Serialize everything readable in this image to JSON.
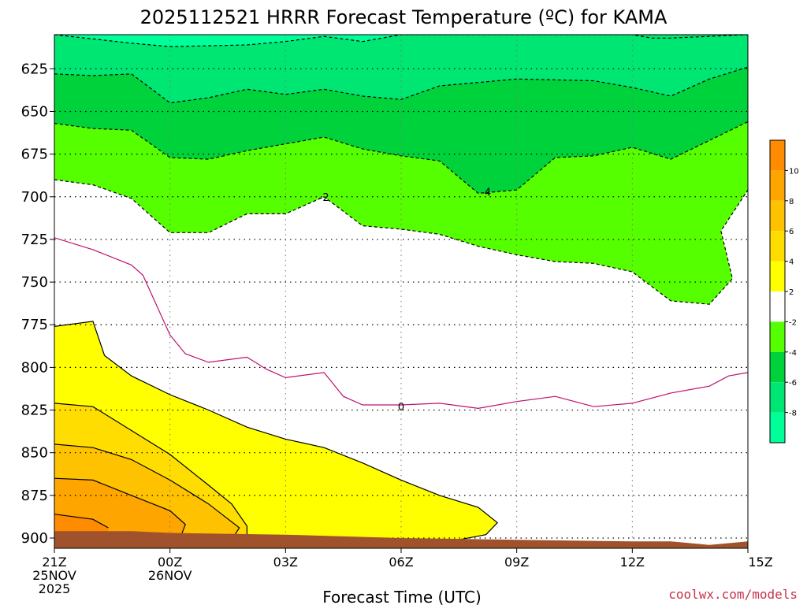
{
  "chart_data": {
    "type": "contour",
    "title": "2025112521 HRRR Forecast Temperature (ºC) for KAMA",
    "xlabel": "Forecast Time (UTC)",
    "ylabel": "",
    "credit": "coolwx.com/models",
    "x_range_hours": [
      0,
      18
    ],
    "y_range_hpa": [
      605,
      906
    ],
    "x_ticks": [
      {
        "hour": 0,
        "lines": [
          "21Z",
          "25NOV",
          "2025"
        ]
      },
      {
        "hour": 3,
        "lines": [
          "00Z",
          "26NOV"
        ]
      },
      {
        "hour": 6,
        "lines": [
          "03Z"
        ]
      },
      {
        "hour": 9,
        "lines": [
          "06Z"
        ]
      },
      {
        "hour": 12,
        "lines": [
          "09Z"
        ]
      },
      {
        "hour": 15,
        "lines": [
          "12Z"
        ]
      },
      {
        "hour": 18,
        "lines": [
          "15Z"
        ]
      }
    ],
    "y_ticks": [
      625,
      650,
      675,
      700,
      725,
      750,
      775,
      800,
      825,
      850,
      875,
      900
    ],
    "contour_labels": [
      {
        "text": "-2",
        "hour": 7.0,
        "hpa": 700
      },
      {
        "text": "-4",
        "hour": 11.2,
        "hpa": 697
      },
      {
        "text": "0",
        "hour": 9.0,
        "hpa": 823
      }
    ],
    "contours": {
      "minus8": [
        [
          0,
          605
        ],
        [
          2,
          610
        ],
        [
          3,
          612
        ],
        [
          5,
          611
        ],
        [
          6,
          609
        ],
        [
          7,
          606
        ],
        [
          8,
          609
        ],
        [
          9,
          605
        ],
        [
          18,
          605
        ],
        [
          16,
          607
        ],
        [
          15.5,
          607
        ],
        [
          15,
          605
        ]
      ],
      "minus6": [
        [
          0,
          628
        ],
        [
          1,
          629
        ],
        [
          2,
          628
        ],
        [
          3,
          645
        ],
        [
          4,
          642
        ],
        [
          5,
          637
        ],
        [
          6,
          640
        ],
        [
          7,
          637
        ],
        [
          8,
          641
        ],
        [
          9,
          643
        ],
        [
          10,
          635
        ],
        [
          11,
          633
        ],
        [
          12,
          631
        ],
        [
          14,
          632
        ],
        [
          15,
          636
        ],
        [
          16,
          641
        ],
        [
          17,
          631
        ],
        [
          18,
          624
        ]
      ],
      "minus4": [
        [
          0,
          657
        ],
        [
          1,
          660
        ],
        [
          2,
          661
        ],
        [
          3,
          677
        ],
        [
          4,
          678
        ],
        [
          5,
          673
        ],
        [
          6,
          669
        ],
        [
          7,
          665
        ],
        [
          8,
          672
        ],
        [
          9,
          676
        ],
        [
          10,
          679
        ],
        [
          11,
          698
        ],
        [
          12,
          696
        ],
        [
          13,
          677
        ],
        [
          14,
          676
        ],
        [
          15,
          671
        ],
        [
          16,
          678
        ],
        [
          17,
          667
        ],
        [
          18,
          656
        ]
      ],
      "minus2": [
        [
          0,
          690
        ],
        [
          1,
          693
        ],
        [
          2,
          701
        ],
        [
          3,
          721
        ],
        [
          4,
          721
        ],
        [
          5,
          710
        ],
        [
          6,
          710
        ],
        [
          7,
          700
        ],
        [
          8,
          717
        ],
        [
          9,
          719
        ],
        [
          10,
          722
        ],
        [
          11,
          729
        ],
        [
          12,
          734
        ],
        [
          13,
          738
        ],
        [
          14,
          739
        ],
        [
          15,
          744
        ],
        [
          16,
          761
        ],
        [
          17,
          763
        ],
        [
          17.6,
          748
        ],
        [
          17.3,
          720
        ],
        [
          18,
          696
        ]
      ],
      "zero": [
        [
          0,
          724
        ],
        [
          1,
          731
        ],
        [
          2,
          740
        ],
        [
          2.3,
          746
        ],
        [
          3,
          781
        ],
        [
          3.4,
          792
        ],
        [
          4,
          797
        ],
        [
          5,
          794
        ],
        [
          5.5,
          801
        ],
        [
          6,
          806
        ],
        [
          7,
          803
        ],
        [
          7.5,
          817
        ],
        [
          8,
          822
        ],
        [
          9,
          822
        ],
        [
          10,
          821
        ],
        [
          11,
          824
        ],
        [
          12,
          820
        ],
        [
          13,
          817
        ],
        [
          14,
          823
        ],
        [
          15,
          821
        ],
        [
          16,
          815
        ],
        [
          17,
          811
        ],
        [
          17.5,
          805
        ],
        [
          18,
          803
        ]
      ],
      "plus2": [
        [
          0,
          776
        ],
        [
          1,
          773
        ],
        [
          1.3,
          793
        ],
        [
          2,
          805
        ],
        [
          3,
          816
        ],
        [
          4,
          825
        ],
        [
          5,
          835
        ],
        [
          6,
          842
        ],
        [
          7,
          847
        ],
        [
          8,
          856
        ],
        [
          9,
          866
        ],
        [
          10,
          875
        ],
        [
          11,
          882
        ],
        [
          11.5,
          891
        ],
        [
          11.2,
          898
        ],
        [
          10.5,
          901
        ],
        [
          9,
          901
        ]
      ],
      "plus4": [
        [
          0,
          821
        ],
        [
          1,
          823
        ],
        [
          2,
          837
        ],
        [
          3,
          851
        ],
        [
          4,
          869
        ],
        [
          4.6,
          880
        ],
        [
          5,
          893
        ],
        [
          5,
          899
        ],
        [
          4.6,
          902
        ]
      ],
      "plus6": [
        [
          0,
          845
        ],
        [
          1,
          847
        ],
        [
          2,
          854
        ],
        [
          3,
          866
        ],
        [
          4,
          880
        ],
        [
          4.8,
          894
        ],
        [
          4.6,
          901
        ]
      ],
      "plus8": [
        [
          0,
          865
        ],
        [
          1,
          866
        ],
        [
          2,
          875
        ],
        [
          3,
          884
        ],
        [
          3.4,
          892
        ],
        [
          3.3,
          898
        ],
        [
          3,
          899
        ]
      ],
      "plus10": [
        [
          0,
          886
        ],
        [
          1,
          889
        ],
        [
          1.4,
          894
        ]
      ]
    },
    "terrain": [
      [
        0,
        896
      ],
      [
        2,
        896
      ],
      [
        3,
        897
      ],
      [
        6,
        898
      ],
      [
        9,
        900
      ],
      [
        12,
        901
      ],
      [
        15,
        902
      ],
      [
        16,
        902
      ],
      [
        17,
        904
      ],
      [
        18,
        902
      ]
    ],
    "legend": {
      "colors": [
        "#00ff99",
        "#00e673",
        "#00d23c",
        "#55ff00",
        "#ffffff",
        "#ffff00",
        "#ffdd00",
        "#ffc200",
        "#ffa500",
        "#ff8c00"
      ],
      "tick_labels": [
        "-8",
        "-6",
        "-4",
        "-2",
        "2",
        "4",
        "6",
        "8",
        "10"
      ]
    }
  }
}
